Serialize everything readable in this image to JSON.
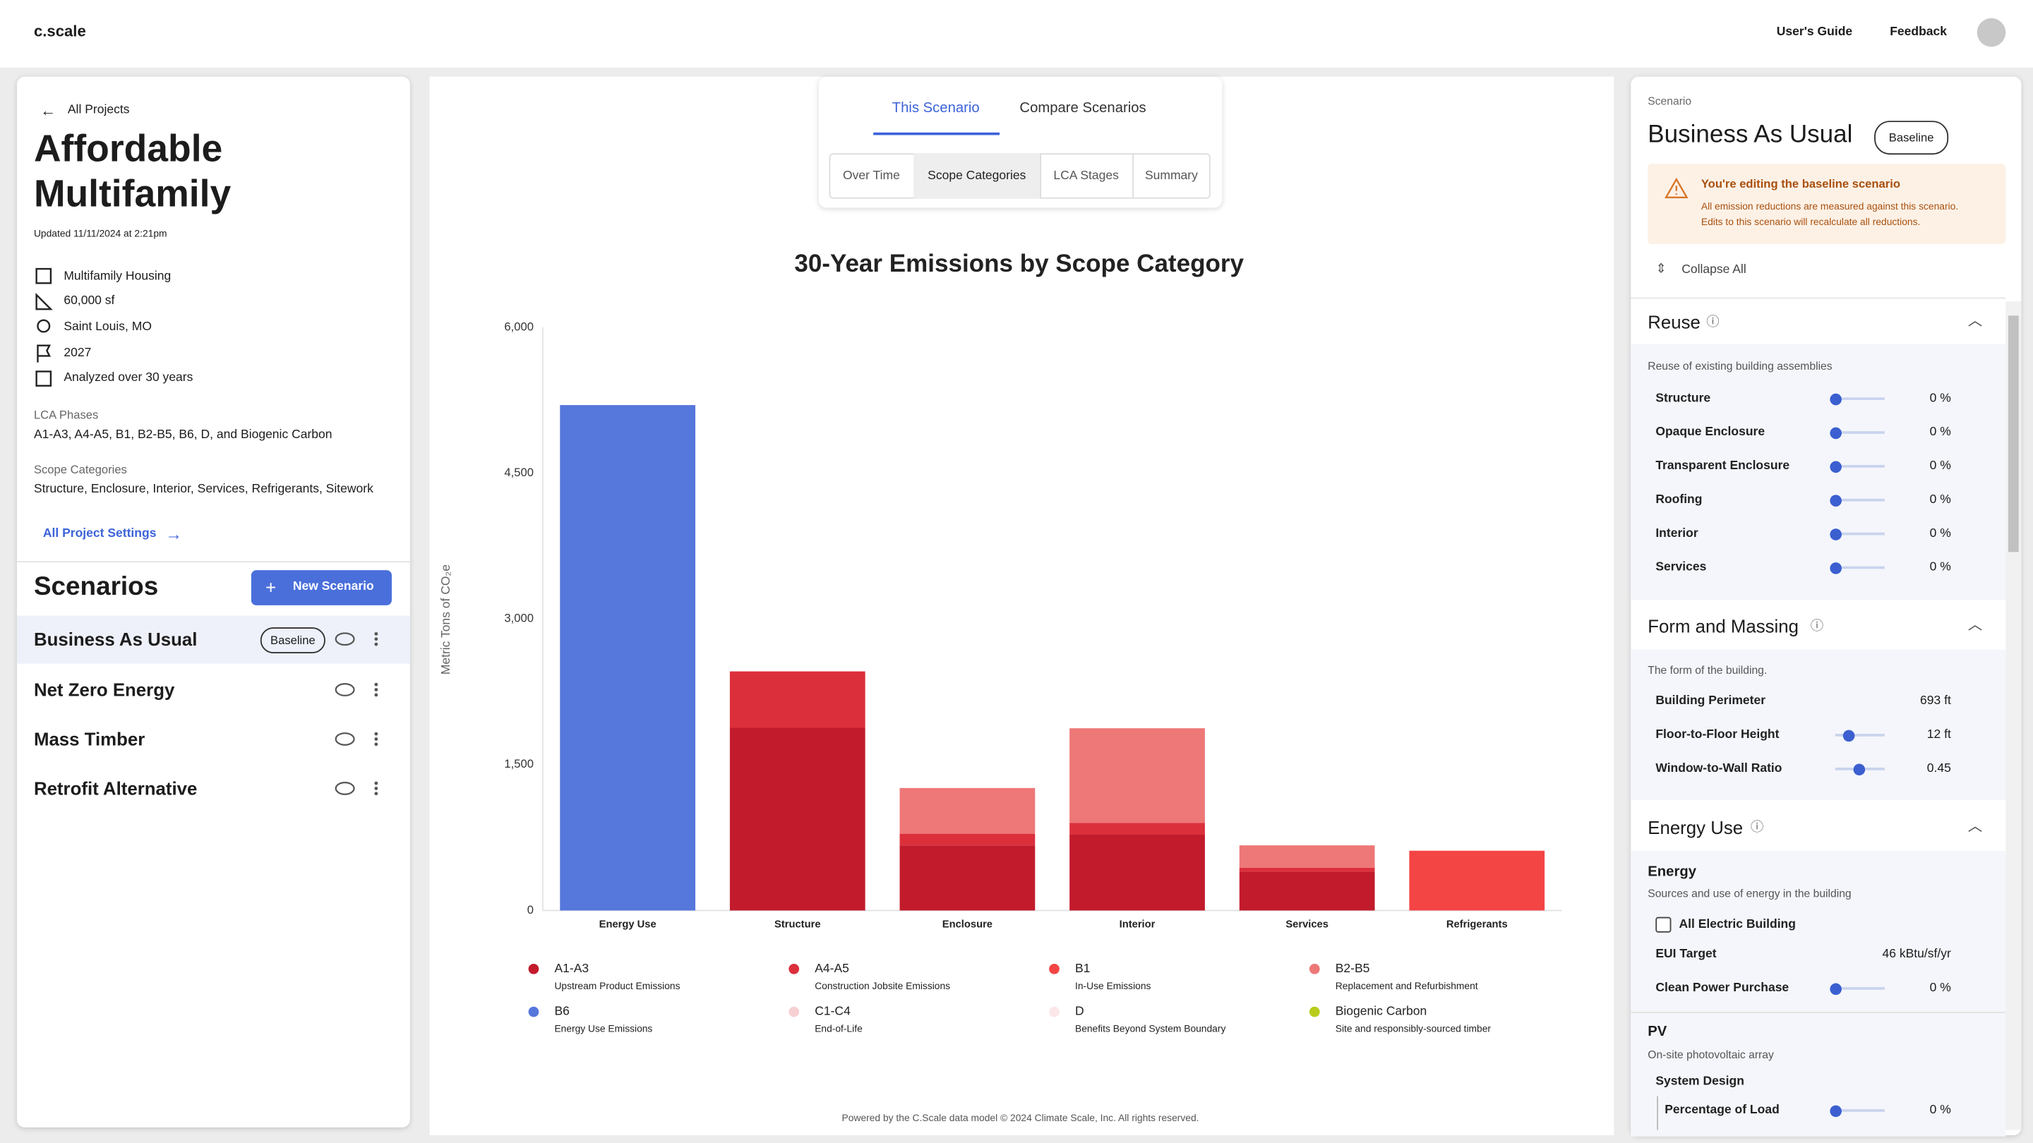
{
  "header": {
    "logo": "c.scale",
    "links": [
      "User's Guide",
      "Feedback"
    ]
  },
  "project": {
    "back": "All Projects",
    "title": "Affordable Multifamily",
    "updated": "Updated 11/11/2024 at 2:21pm",
    "details": [
      "Multifamily Housing",
      "60,000 sf",
      "Saint Louis, MO",
      "2027",
      "Analyzed over 30 years"
    ],
    "lca_phases_label": "LCA Phases",
    "lca_phases": "A1-A3, A4-A5, B1, B2-B5, B6, D, and Biogenic Carbon",
    "scope_label": "Scope Categories",
    "scope": "Structure, Enclosure, Interior, Services, Refrigerants, Sitework",
    "settings_link": "All Project Settings"
  },
  "scenarios": {
    "title": "Scenarios",
    "new_button": "New Scenario",
    "items": [
      {
        "name": "Business As Usual",
        "badge": "Baseline"
      },
      {
        "name": "Net Zero Energy"
      },
      {
        "name": "Mass Timber"
      },
      {
        "name": "Retrofit Alternative"
      }
    ]
  },
  "tabs": {
    "main": [
      "This Scenario",
      "Compare Scenarios"
    ],
    "sub": [
      "Over Time",
      "Scope Categories",
      "LCA Stages",
      "Summary"
    ]
  },
  "chart_data": {
    "type": "bar",
    "stacked": true,
    "title": "30-Year Emissions by Scope Category",
    "y_label": "Metric Tons of CO₂e",
    "categories": [
      "Energy Use",
      "Structure",
      "Enclosure",
      "Interior",
      "Services",
      "Refrigerants"
    ],
    "series": [
      {
        "name": "A1-A3",
        "description": "Upstream Product Emissions",
        "color": "#c21b2c",
        "values": [
          0,
          1880,
          670,
          780,
          400,
          0
        ]
      },
      {
        "name": "A4-A5",
        "description": "Construction Jobsite Emissions",
        "color": "#dc2f3c",
        "values": [
          0,
          580,
          120,
          120,
          40,
          0
        ]
      },
      {
        "name": "B1",
        "description": "In-Use Emissions",
        "color": "#f44545",
        "values": [
          0,
          0,
          0,
          0,
          0,
          615
        ]
      },
      {
        "name": "B2-B5",
        "description": "Replacement and Refurbishment",
        "color": "#ee7777",
        "values": [
          0,
          0,
          470,
          975,
          230,
          0
        ]
      },
      {
        "name": "B6",
        "description": "Energy Use Emissions",
        "color": "#5677db",
        "values": [
          5200,
          0,
          0,
          0,
          0,
          0
        ]
      },
      {
        "name": "C1-C4",
        "description": "End-of-Life",
        "color": "#f7d0d3",
        "values": [
          0,
          0,
          0,
          0,
          0,
          0
        ]
      },
      {
        "name": "D",
        "description": "Benefits Beyond System Boundary",
        "color": "#fbe7e8",
        "values": [
          0,
          0,
          0,
          0,
          0,
          0
        ]
      },
      {
        "name": "Biogenic Carbon",
        "description": "Site and responsibly-sourced timber",
        "color": "#b8cc1a",
        "values": [
          0,
          0,
          0,
          0,
          0,
          0
        ]
      }
    ],
    "ylim": [
      0,
      6000
    ],
    "yticks": [
      0,
      {
        "value": 1500,
        "label": "1,500"
      },
      {
        "value": 3000,
        "label": "3,000"
      },
      {
        "value": 4500,
        "label": "4,500"
      },
      {
        "value": 6000,
        "label": "6,000"
      }
    ],
    "grid": false
  },
  "footer": "Powered by the C.Scale data model © 2024 Climate Scale, Inc. All rights reserved.",
  "panel": {
    "label": "Scenario",
    "title": "Business As Usual",
    "badge": "Baseline",
    "alert_title": "You're editing the baseline scenario",
    "alert_text": [
      "All emission reductions are measured against this scenario.",
      "Edits to this scenario will recalculate all reductions."
    ],
    "collapse": "Collapse All",
    "sections": [
      {
        "title": "Reuse",
        "description": "Reuse of existing building assemblies",
        "rows": [
          {
            "label": "Structure",
            "value": "0 %"
          },
          {
            "label": "Opaque Enclosure",
            "value": "0 %"
          },
          {
            "label": "Transparent Enclosure",
            "value": "0 %"
          },
          {
            "label": "Roofing",
            "value": "0 %"
          },
          {
            "label": "Interior",
            "value": "0 %"
          },
          {
            "label": "Services",
            "value": "0 %"
          }
        ]
      },
      {
        "title": "Form and Massing",
        "description": "The form of the building.",
        "rows": [
          {
            "label": "Building Perimeter",
            "value": "693 ft"
          },
          {
            "label": "Floor-to-Floor Height",
            "value": "12 ft"
          },
          {
            "label": "Window-to-Wall Ratio",
            "value": "0.45"
          }
        ]
      },
      {
        "title": "Energy Use",
        "groups": [
          {
            "title": "Energy",
            "description": "Sources and use of energy in the building",
            "rows": [
              {
                "label": "All Electric Building"
              },
              {
                "label": "EUI Target",
                "value": "46 kBtu/sf/yr"
              },
              {
                "label": "Clean Power Purchase",
                "value": "0 %"
              }
            ]
          },
          {
            "title": "PV",
            "description": "On-site photovoltaic array",
            "rows": [
              {
                "label": "System Design"
              },
              {
                "label": "Percentage of Load",
                "value": "0 %"
              }
            ]
          }
        ]
      }
    ]
  }
}
